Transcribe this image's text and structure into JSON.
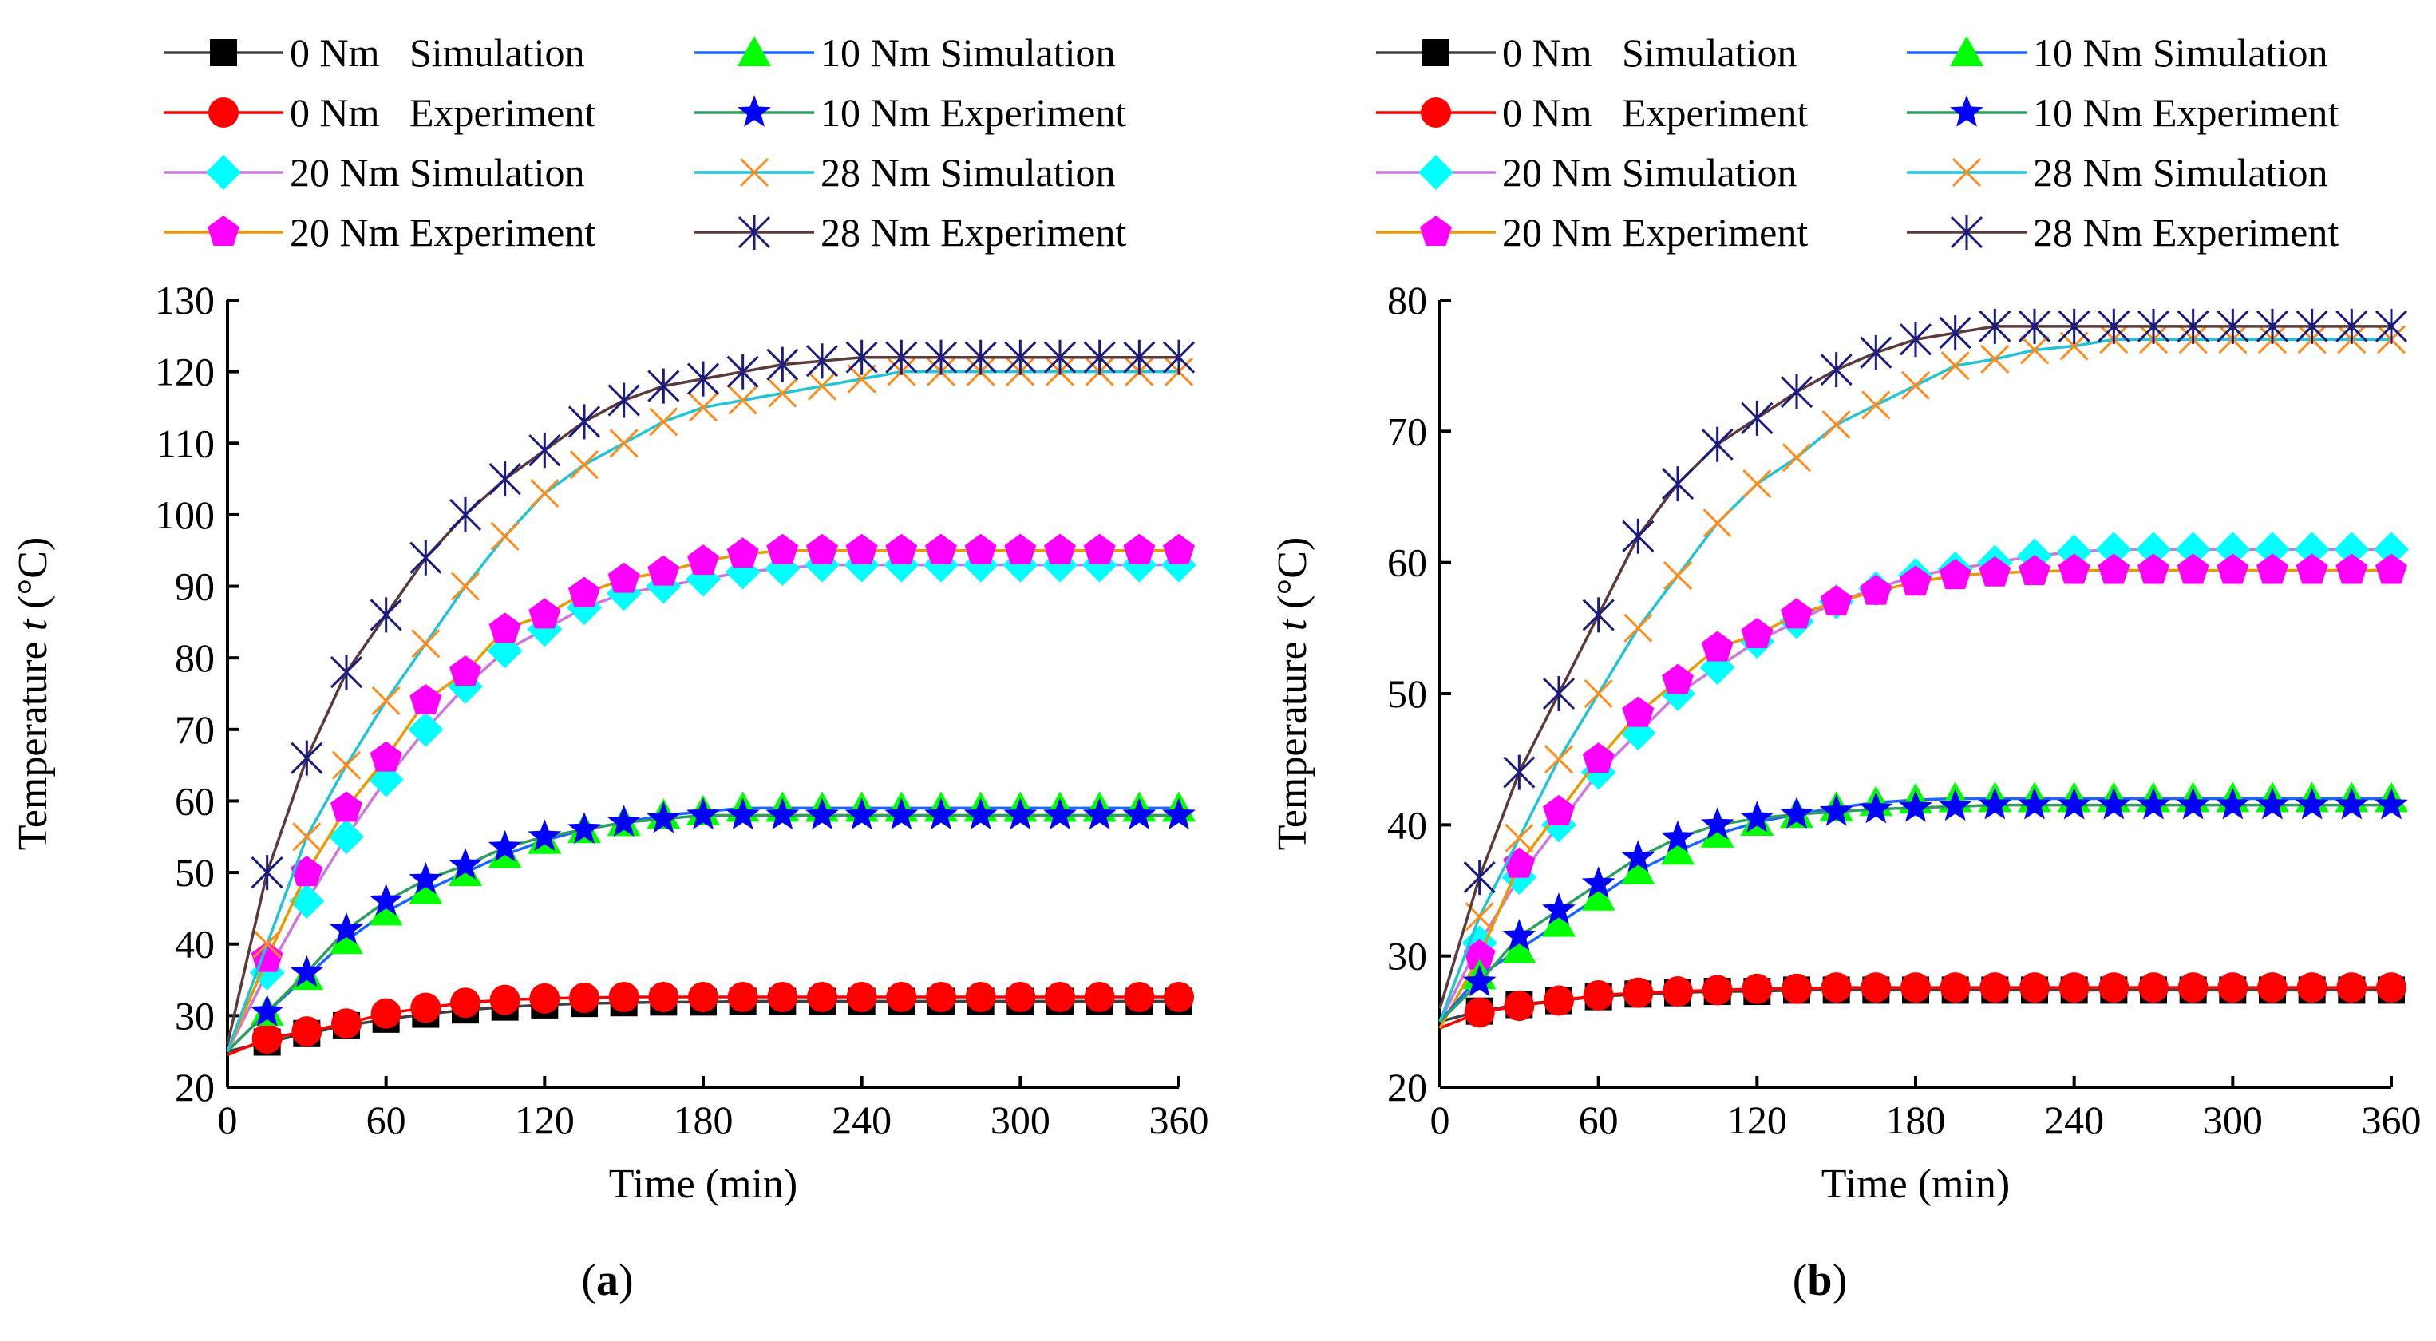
{
  "chart_data": [
    {
      "type": "line",
      "panel_label": "(a)",
      "panel_letter": "a",
      "xlabel": "Time (min)",
      "ylabel_prefix": "Temperature ",
      "ylabel_var": "t",
      "ylabel_unit": " (°C)",
      "xlim": [
        0,
        360
      ],
      "ylim": [
        20,
        130
      ],
      "xticks": [
        0,
        60,
        120,
        180,
        240,
        300,
        360
      ],
      "yticks": [
        20,
        30,
        40,
        50,
        60,
        70,
        80,
        90,
        100,
        110,
        120,
        130
      ],
      "x": [
        0,
        15,
        30,
        45,
        60,
        75,
        90,
        105,
        120,
        135,
        150,
        165,
        180,
        195,
        210,
        225,
        240,
        255,
        270,
        285,
        300,
        315,
        330,
        345,
        360
      ],
      "legend_position": "top",
      "series": [
        {
          "name": "0 Nm   Simulation",
          "line_color": "#404040",
          "marker": "square",
          "marker_color": "#000000",
          "values": [
            25,
            26.3,
            27.5,
            28.6,
            29.5,
            30.2,
            30.8,
            31.2,
            31.5,
            31.7,
            31.8,
            31.9,
            31.9,
            32,
            32,
            32,
            32,
            32,
            32,
            32,
            32,
            32,
            32,
            32,
            32
          ]
        },
        {
          "name": "0 Nm   Experiment",
          "line_color": "#ff0000",
          "marker": "circle",
          "marker_color": "#ff0000",
          "values": [
            24.5,
            26.8,
            27.8,
            28.9,
            30.3,
            31.1,
            31.8,
            32.2,
            32.4,
            32.5,
            32.6,
            32.6,
            32.6,
            32.6,
            32.6,
            32.6,
            32.6,
            32.6,
            32.6,
            32.6,
            32.6,
            32.6,
            32.6,
            32.6,
            32.6
          ]
        },
        {
          "name": "20 Nm Simulation",
          "line_color": "#cc77dd",
          "marker": "diamond",
          "marker_color": "#00ffff",
          "values": [
            25,
            36,
            46,
            55,
            63,
            70,
            76,
            81,
            84,
            87,
            89,
            90,
            91,
            92,
            92.5,
            93,
            93,
            93,
            93,
            93,
            93,
            93,
            93,
            93,
            93
          ]
        },
        {
          "name": "20 Nm Experiment",
          "line_color": "#e69b00",
          "marker": "pentagon",
          "marker_color": "#ff00ff",
          "values": [
            25,
            38,
            50,
            59,
            66,
            74,
            78,
            84,
            86,
            89,
            91,
            92,
            93.5,
            94.5,
            95,
            95,
            95,
            95,
            95,
            95,
            95,
            95,
            95,
            95,
            95
          ]
        },
        {
          "name": "10 Nm Simulation",
          "line_color": "#1a66ff",
          "marker": "triangle",
          "marker_color": "#00ff00",
          "values": [
            25,
            30.5,
            35.5,
            40.5,
            44.5,
            47.5,
            50,
            52.5,
            54.5,
            56,
            57,
            58,
            58.5,
            59,
            59,
            59,
            59,
            59,
            59,
            59,
            59,
            59,
            59,
            59,
            59
          ]
        },
        {
          "name": "10 Nm Experiment",
          "line_color": "#2e9e5e",
          "marker": "star",
          "marker_color": "#0000ff",
          "values": [
            25,
            30.5,
            36,
            42,
            46,
            49,
            51,
            53.5,
            55,
            56,
            57,
            57.5,
            58,
            58,
            58,
            58,
            58,
            58,
            58,
            58,
            58,
            58,
            58,
            58,
            58
          ]
        },
        {
          "name": "28 Nm Simulation",
          "line_color": "#22c3d6",
          "marker": "cross",
          "marker_color": "#ff8c1a",
          "values": [
            25,
            40,
            55,
            65,
            74,
            82,
            90,
            97,
            103,
            107,
            110,
            113,
            115,
            116,
            117,
            118,
            119,
            120,
            120,
            120,
            120,
            120,
            120,
            120,
            120
          ]
        },
        {
          "name": "28 Nm Experiment",
          "line_color": "#5c3a3a",
          "marker": "asterisk",
          "marker_color": "#1a1a80",
          "values": [
            26,
            50,
            66,
            78,
            86,
            94,
            100,
            105,
            109,
            113,
            116,
            118,
            119,
            120,
            121,
            121.5,
            122,
            122,
            122,
            122,
            122,
            122,
            122,
            122,
            122
          ]
        }
      ]
    },
    {
      "type": "line",
      "panel_label": "(b)",
      "panel_letter": "b",
      "xlabel": "Time (min)",
      "ylabel_prefix": "Temperature ",
      "ylabel_var": "t",
      "ylabel_unit": " (°C)",
      "xlim": [
        0,
        360
      ],
      "ylim": [
        20,
        80
      ],
      "xticks": [
        0,
        60,
        120,
        180,
        240,
        300,
        360
      ],
      "yticks": [
        20,
        30,
        40,
        50,
        60,
        70,
        80
      ],
      "x": [
        0,
        15,
        30,
        45,
        60,
        75,
        90,
        105,
        120,
        135,
        150,
        165,
        180,
        195,
        210,
        225,
        240,
        255,
        270,
        285,
        300,
        315,
        330,
        345,
        360
      ],
      "legend_position": "top",
      "series": [
        {
          "name": "0 Nm   Simulation",
          "line_color": "#404040",
          "marker": "square",
          "marker_color": "#000000",
          "values": [
            25,
            25.8,
            26.3,
            26.6,
            26.9,
            27.1,
            27.2,
            27.3,
            27.3,
            27.4,
            27.4,
            27.4,
            27.4,
            27.4,
            27.4,
            27.4,
            27.4,
            27.4,
            27.4,
            27.4,
            27.4,
            27.4,
            27.4,
            27.4,
            27.4
          ]
        },
        {
          "name": "0 Nm   Experiment",
          "line_color": "#ff0000",
          "marker": "circle",
          "marker_color": "#ff0000",
          "values": [
            24.5,
            25.7,
            26.2,
            26.6,
            27,
            27.2,
            27.3,
            27.4,
            27.5,
            27.5,
            27.6,
            27.6,
            27.6,
            27.6,
            27.6,
            27.6,
            27.6,
            27.6,
            27.6,
            27.6,
            27.6,
            27.6,
            27.6,
            27.6,
            27.6
          ]
        },
        {
          "name": "20 Nm Simulation",
          "line_color": "#cc77dd",
          "marker": "diamond",
          "marker_color": "#00ffff",
          "values": [
            25,
            31,
            36,
            40,
            44,
            47,
            50,
            52,
            54,
            55.5,
            57,
            58,
            59,
            59.5,
            60,
            60.5,
            60.8,
            61,
            61,
            61,
            61,
            61,
            61,
            61,
            61
          ]
        },
        {
          "name": "20 Nm Experiment",
          "line_color": "#e69b00",
          "marker": "pentagon",
          "marker_color": "#ff00ff",
          "values": [
            24.5,
            30,
            37,
            41,
            45,
            48.5,
            51,
            53.5,
            54.5,
            56,
            57,
            57.8,
            58.5,
            59,
            59.2,
            59.3,
            59.4,
            59.4,
            59.4,
            59.4,
            59.4,
            59.4,
            59.4,
            59.4,
            59.4
          ]
        },
        {
          "name": "10 Nm Simulation",
          "line_color": "#1a66ff",
          "marker": "triangle",
          "marker_color": "#00ff00",
          "values": [
            25,
            28.5,
            30.5,
            32.5,
            34.5,
            36.5,
            38,
            39.3,
            40.2,
            40.8,
            41.3,
            41.7,
            41.9,
            42,
            42,
            42,
            42,
            42,
            42,
            42,
            42,
            42,
            42,
            42,
            42
          ]
        },
        {
          "name": "10 Nm Experiment",
          "line_color": "#2e9e5e",
          "marker": "star",
          "marker_color": "#0000ff",
          "values": [
            25,
            28,
            31.5,
            33.5,
            35.5,
            37.5,
            39,
            40,
            40.5,
            40.8,
            41,
            41.2,
            41.3,
            41.4,
            41.5,
            41.5,
            41.5,
            41.5,
            41.5,
            41.5,
            41.5,
            41.5,
            41.5,
            41.5,
            41.5
          ]
        },
        {
          "name": "28 Nm Simulation",
          "line_color": "#22c3d6",
          "marker": "cross",
          "marker_color": "#ff8c1a",
          "values": [
            25,
            33,
            39,
            45,
            50,
            55,
            59,
            63,
            66,
            68,
            70.5,
            72,
            73.5,
            75,
            75.5,
            76.2,
            76.5,
            77,
            77,
            77,
            77,
            77,
            77,
            77,
            77
          ]
        },
        {
          "name": "28 Nm Experiment",
          "line_color": "#5c3a3a",
          "marker": "asterisk",
          "marker_color": "#1a1a80",
          "values": [
            26,
            36,
            44,
            50,
            56,
            62,
            66,
            69,
            71,
            73,
            74.7,
            76,
            77,
            77.5,
            78,
            78,
            78,
            78,
            78,
            78,
            78,
            78,
            78,
            78,
            78
          ]
        }
      ]
    }
  ]
}
